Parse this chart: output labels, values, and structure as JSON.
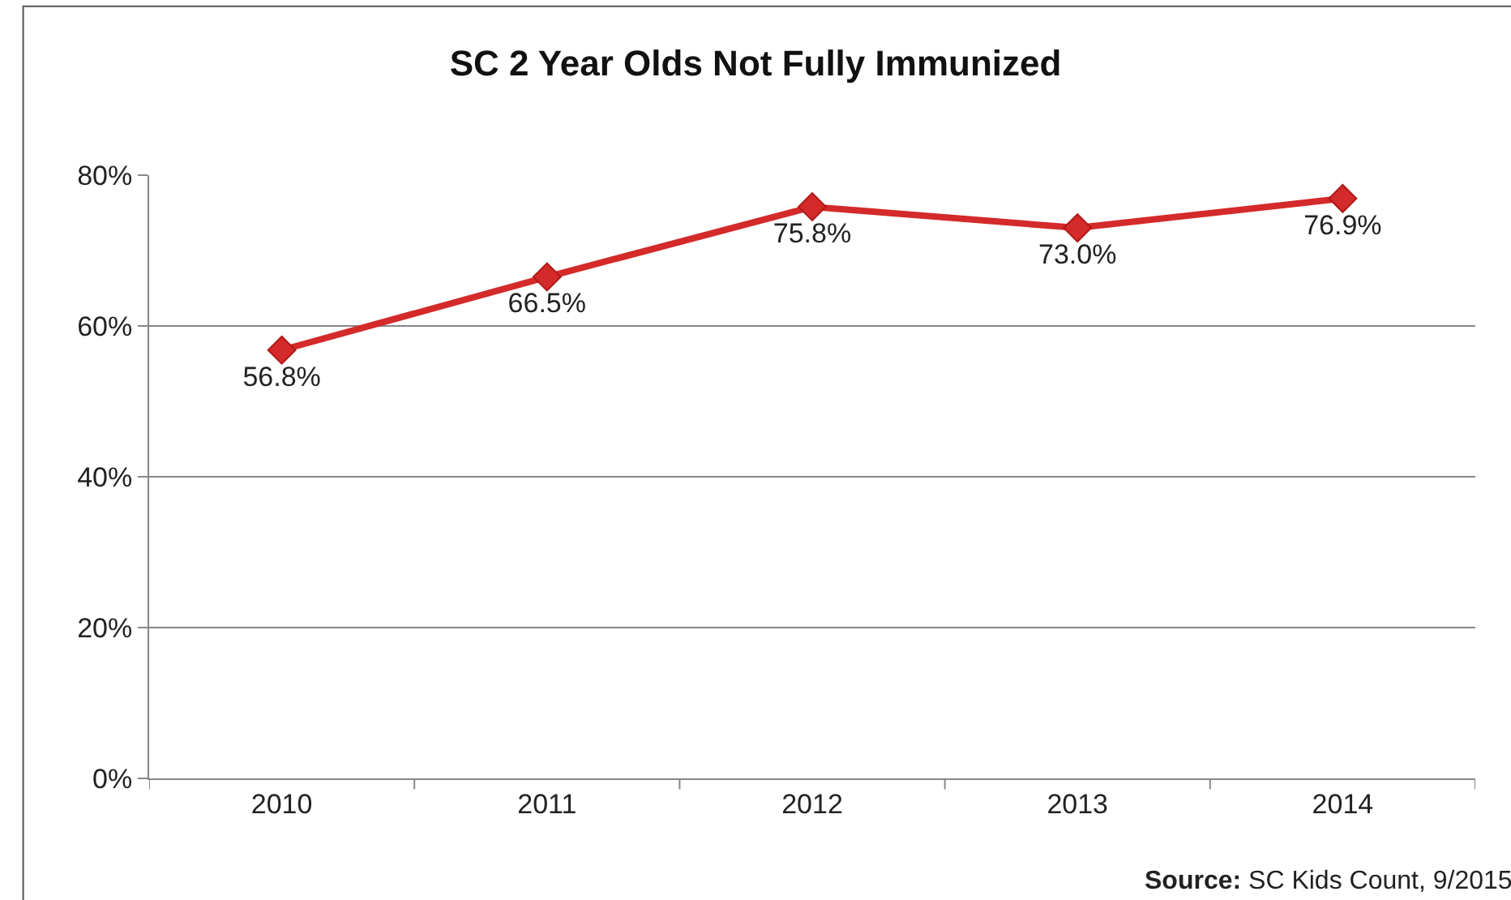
{
  "chart_data": {
    "type": "line",
    "title": "SC 2 Year Olds Not Fully Immunized",
    "categories": [
      "2010",
      "2011",
      "2012",
      "2013",
      "2014"
    ],
    "series": [
      {
        "color": "#d42a2a",
        "values": [
          56.8,
          66.5,
          75.8,
          73.0,
          76.9
        ],
        "value_labels": [
          "56.8%",
          "66.5%",
          "75.8%",
          "73.0%",
          "76.9%"
        ]
      }
    ],
    "ylim": [
      0,
      80
    ],
    "yticks": [
      {
        "value": 0,
        "label": "0%"
      },
      {
        "value": 20,
        "label": "20%"
      },
      {
        "value": 40,
        "label": "40%"
      },
      {
        "value": 60,
        "label": "60%"
      },
      {
        "value": 80,
        "label": "80%"
      }
    ],
    "grid": "y",
    "legend": false,
    "marker": "diamond",
    "line_style": "solid",
    "annotations": [
      "Source: SC Kids Count, 9/2015"
    ]
  }
}
